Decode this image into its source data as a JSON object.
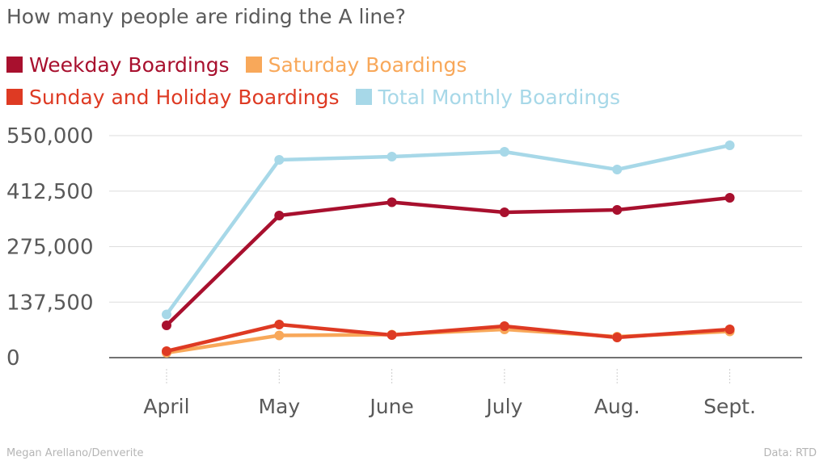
{
  "title": "How many people are riding the A line?",
  "credit": "Megan Arellano/Denverite",
  "source": "Data: RTD",
  "chart_data": {
    "type": "line",
    "title": "How many people are riding the A line?",
    "categories": [
      "April",
      "May",
      "June",
      "July",
      "Aug.",
      "Sept."
    ],
    "ylim": [
      0,
      550000
    ],
    "yticks": [
      0,
      137500,
      275000,
      412500,
      550000
    ],
    "ytick_labels": [
      "0",
      "137,500",
      "275,000",
      "412,500",
      "550,000"
    ],
    "grid": true,
    "legend_position": "top",
    "series": [
      {
        "name": "Weekday Boardings",
        "color": "#a8102e",
        "values": [
          80000,
          352000,
          385000,
          360000,
          366000,
          396000
        ]
      },
      {
        "name": "Saturday Boardings",
        "color": "#f8a85a",
        "values": [
          12000,
          55000,
          57000,
          70000,
          52000,
          65000
        ]
      },
      {
        "name": "Sunday and Holiday Boardings",
        "color": "#de3a23",
        "values": [
          16000,
          82000,
          56000,
          78000,
          50000,
          70000
        ]
      },
      {
        "name": "Total Monthly Boardings",
        "color": "#a7d8e8",
        "values": [
          107000,
          490000,
          498000,
          510000,
          466000,
          526000
        ]
      }
    ]
  }
}
